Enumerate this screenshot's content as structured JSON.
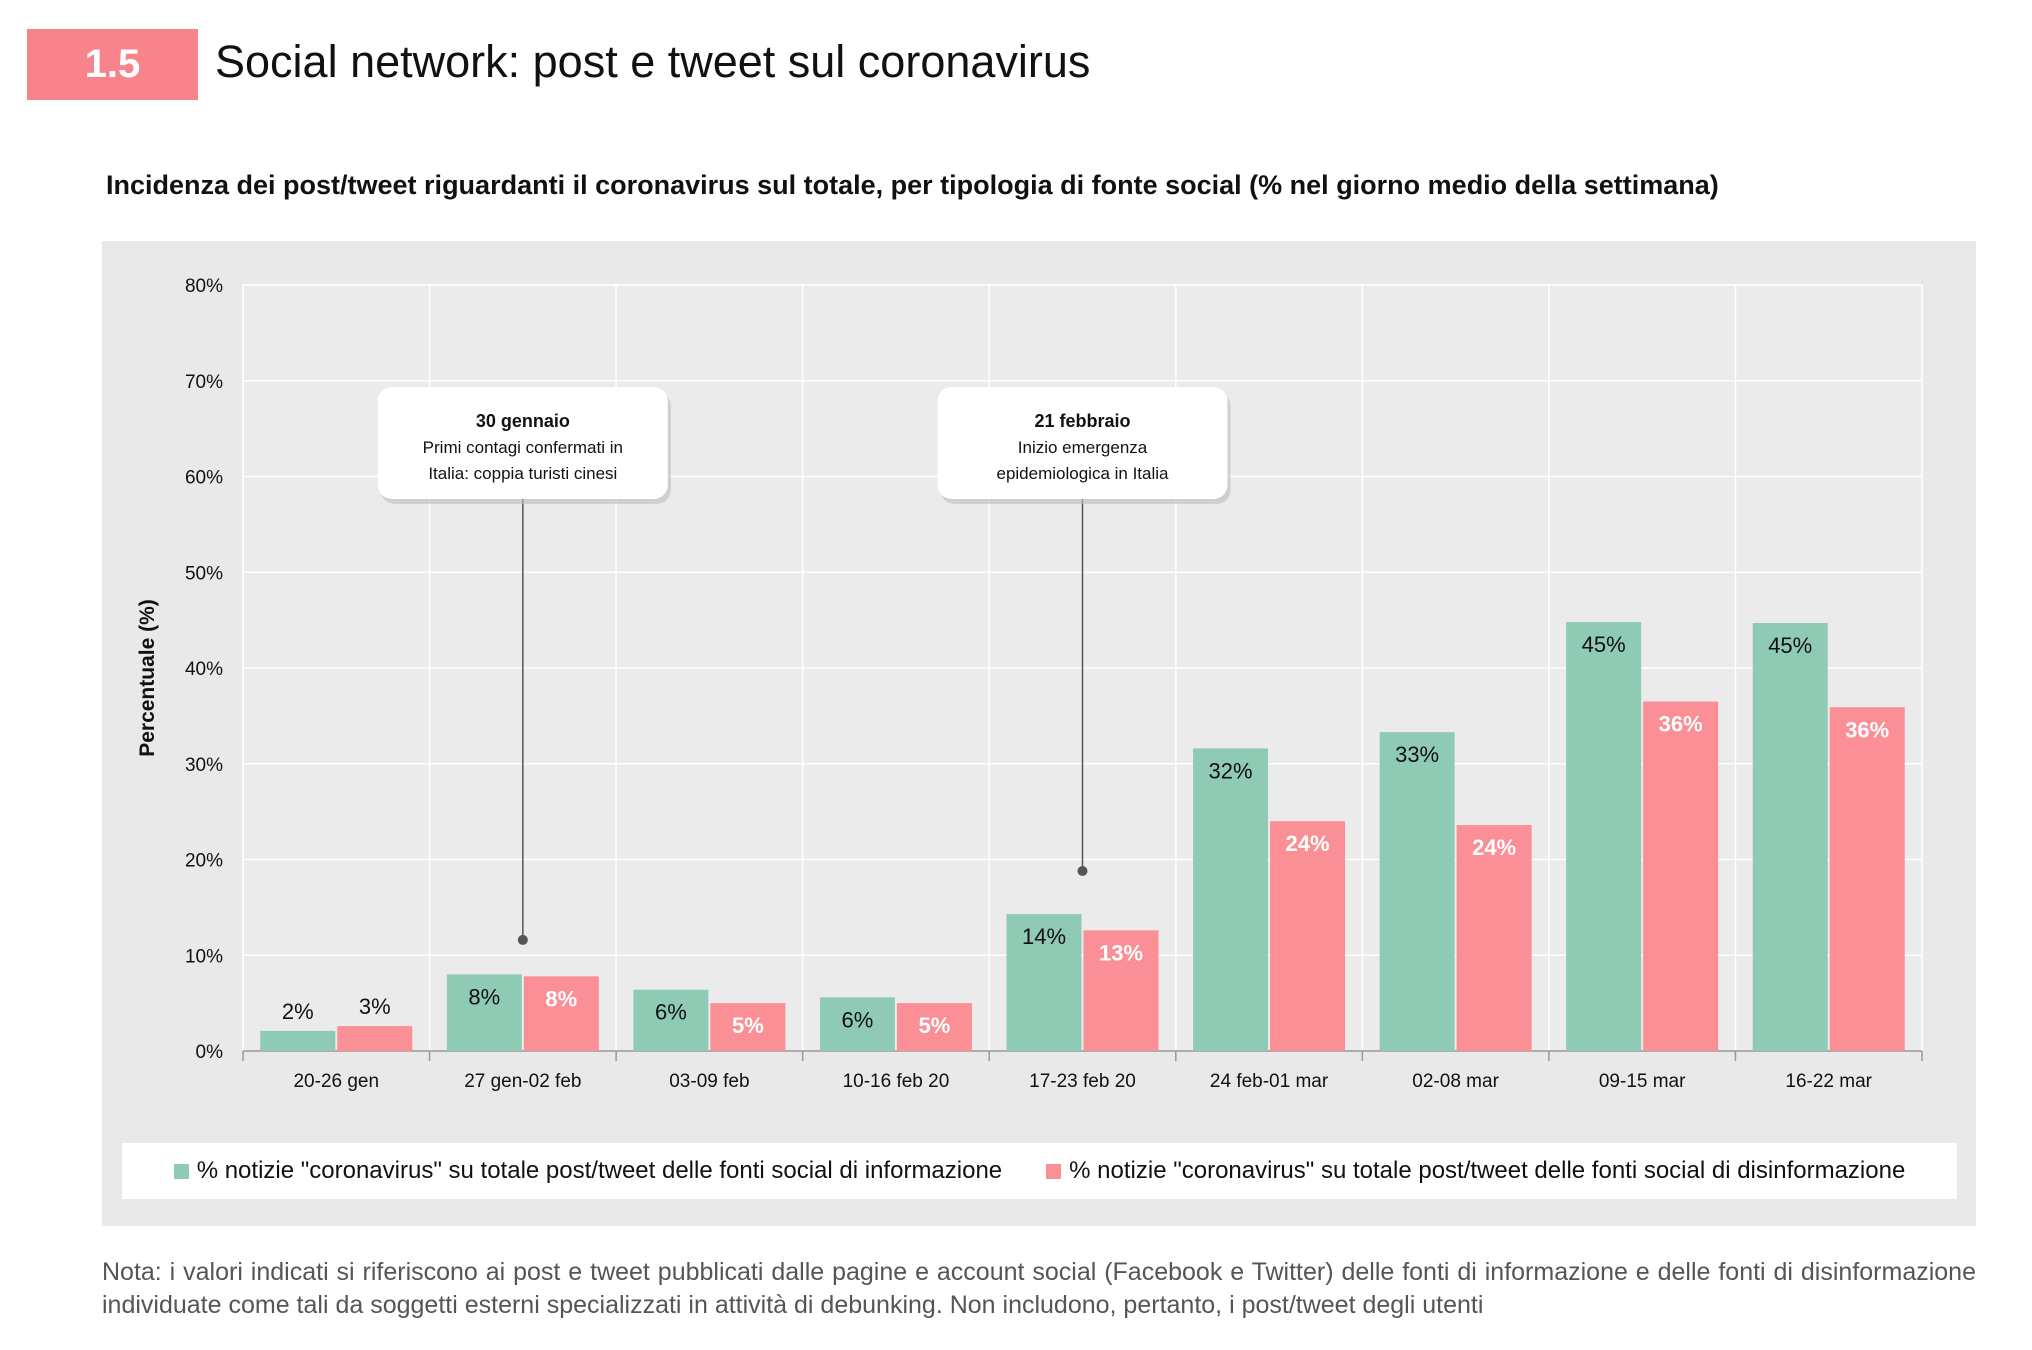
{
  "header": {
    "section_number": "1.5",
    "title": "Social network: post e tweet sul coronavirus"
  },
  "chart_data": {
    "type": "bar",
    "title": "Incidenza dei post/tweet riguardanti il coronavirus sul totale, per tipologia di fonte social (% nel giorno medio della settimana)",
    "ylabel": "Percentuale (%)",
    "xlabel": "",
    "ylim": [
      0,
      80
    ],
    "yticks": [
      "0%",
      "10%",
      "20%",
      "30%",
      "40%",
      "50%",
      "60%",
      "70%",
      "80%"
    ],
    "grid": true,
    "legend_position": "bottom",
    "categories": [
      "20-26 gen",
      "27 gen-02 feb",
      "03-09 feb",
      "10-16 feb 20",
      "17-23 feb 20",
      "24 feb-01 mar",
      "02-08 mar",
      "09-15 mar",
      "16-22 mar"
    ],
    "series": [
      {
        "name": "% notizie \"coronavirus\" su totale post/tweet delle fonti social di informazione",
        "color": "#8fcab5",
        "values": [
          2.1,
          8.0,
          6.4,
          5.6,
          14.3,
          31.6,
          33.3,
          44.8,
          44.7
        ],
        "labels": [
          "2%",
          "8%",
          "6%",
          "6%",
          "14%",
          "32%",
          "33%",
          "45%",
          "45%"
        ]
      },
      {
        "name": "% notizie \"coronavirus\" su totale post/tweet delle fonti social di disinformazione",
        "color": "#fa8f95",
        "values": [
          2.6,
          7.8,
          5.0,
          5.0,
          12.6,
          24.0,
          23.6,
          36.5,
          35.9
        ],
        "labels": [
          "3%",
          "8%",
          "5%",
          "5%",
          "13%",
          "24%",
          "24%",
          "36%",
          "36%"
        ]
      }
    ],
    "annotations": [
      {
        "category": "27 gen-02 feb",
        "point_y": 11.6,
        "title": "30 gennaio",
        "lines": [
          "Primi contagi confermati in",
          "Italia: coppia turisti cinesi"
        ]
      },
      {
        "category": "17-23 feb 20",
        "point_y": 18.8,
        "title": "21 febbraio",
        "lines": [
          "Inizio emergenza",
          "epidemiologica in Italia"
        ]
      }
    ]
  },
  "note": "Nota: i valori indicati si riferiscono ai post e tweet pubblicati dalle pagine e account social (Facebook e Twitter) delle fonti di informazione e delle fonti di disinformazione individuate come tali da soggetti esterni specializzati in attività di debunking. Non includono, pertanto, i post/tweet degli utenti"
}
